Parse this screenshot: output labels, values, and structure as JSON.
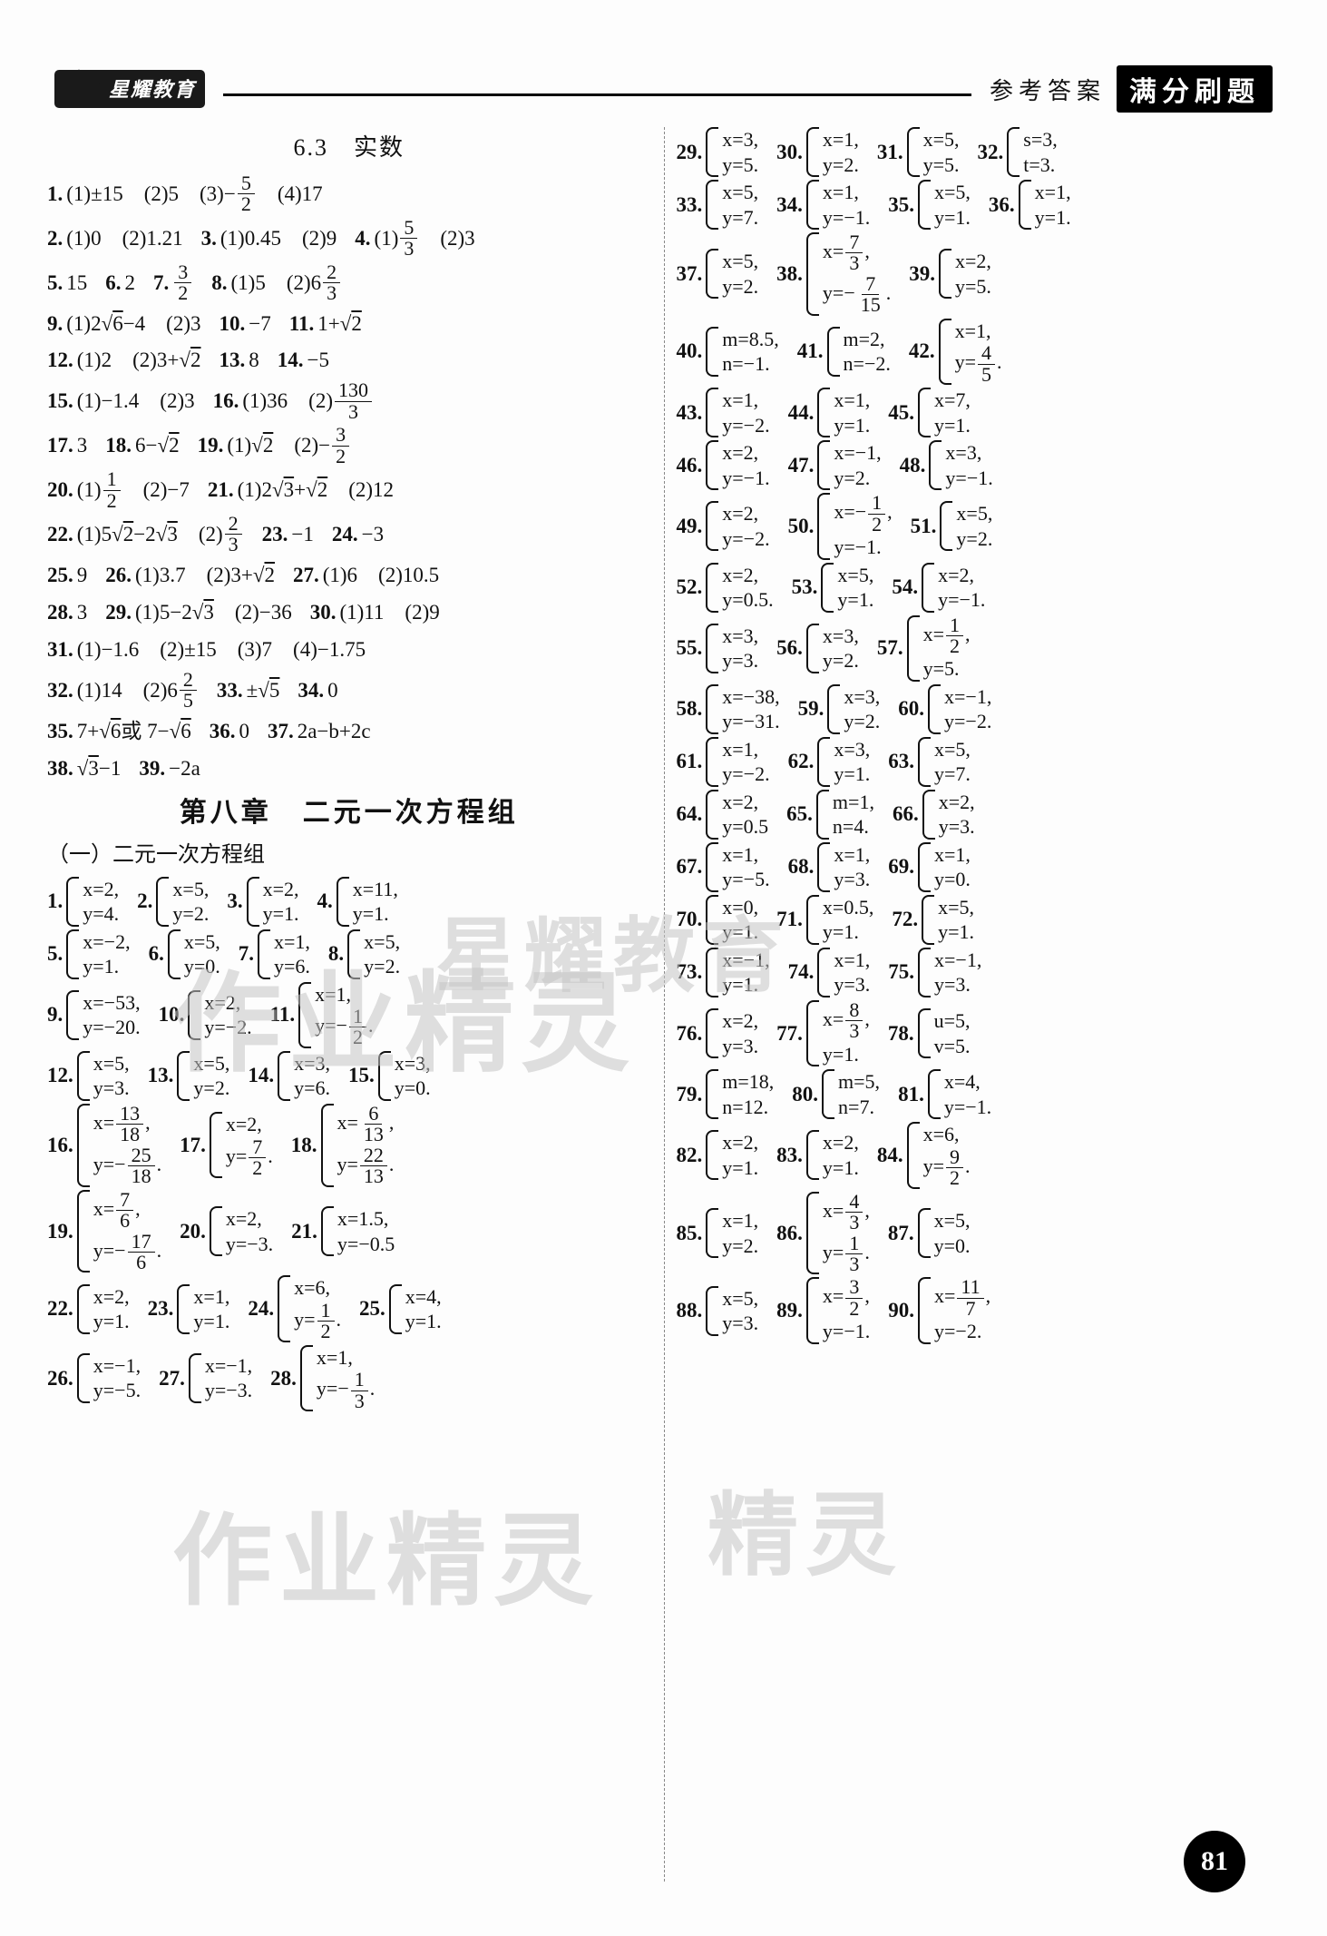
{
  "brand": "星耀教育",
  "ref": "参考答案",
  "badge": "满分刷题",
  "pagenum": "81",
  "sec63_title": "6.3　实数",
  "chap8_title": "第八章　二元一次方程组",
  "chap8_sub": "（一）二元一次方程组",
  "watermarks": [
    "星耀教育",
    "作业精灵",
    "作业精灵",
    "精灵"
  ],
  "colors": {
    "text": "#111",
    "bg": "#fdfdfd",
    "header": "#000",
    "wm": "#c5c5c5"
  },
  "font_main_pt": 17,
  "sec63": [
    {
      "n": "1.",
      "p": "(1)±15　(2)5　(3)−5/2　(4)17"
    },
    {
      "n": "2.",
      "p": "(1)0　(2)1.21"
    },
    {
      "n": "3.",
      "p": "(1)0.45　(2)9"
    },
    {
      "n": "4.",
      "p": "(1)5/3　(2)3"
    },
    {
      "n": "5.",
      "p": "15"
    },
    {
      "n": "6.",
      "p": "2"
    },
    {
      "n": "7.",
      "p": "3/2"
    },
    {
      "n": "8.",
      "p": "(1)5　(2)6 2/3"
    },
    {
      "n": "9.",
      "p": "(1)2√6−4　(2)3"
    },
    {
      "n": "10.",
      "p": "−7"
    },
    {
      "n": "11.",
      "p": "1+√2"
    },
    {
      "n": "12.",
      "p": "(1)2　(2)3+√2"
    },
    {
      "n": "13.",
      "p": "8"
    },
    {
      "n": "14.",
      "p": "−5"
    },
    {
      "n": "15.",
      "p": "(1)−1.4　(2)3"
    },
    {
      "n": "16.",
      "p": "(1)36　(2)130/3"
    },
    {
      "n": "17.",
      "p": "3"
    },
    {
      "n": "18.",
      "p": "6−√2"
    },
    {
      "n": "19.",
      "p": "(1)√2　(2)−3/2"
    },
    {
      "n": "20.",
      "p": "(1)1/2　(2)−7"
    },
    {
      "n": "21.",
      "p": "(1)2√3+√2　(2)12"
    },
    {
      "n": "22.",
      "p": "(1)5√2−2√3　(2)2/3"
    },
    {
      "n": "23.",
      "p": "−1"
    },
    {
      "n": "24.",
      "p": "−3"
    },
    {
      "n": "25.",
      "p": "9"
    },
    {
      "n": "26.",
      "p": "(1)3.7　(2)3+√2"
    },
    {
      "n": "27.",
      "p": "(1)6　(2)10.5"
    },
    {
      "n": "28.",
      "p": "3"
    },
    {
      "n": "29.",
      "p": "(1)5−2√3　(2)−36"
    },
    {
      "n": "30.",
      "p": "(1)11　(2)9"
    },
    {
      "n": "31.",
      "p": "(1)−1.6　(2)±15　(3)7　(4)−1.75"
    },
    {
      "n": "32.",
      "p": "(1)14　(2)6 2/5"
    },
    {
      "n": "33.",
      "p": "±√5"
    },
    {
      "n": "34.",
      "p": "0"
    },
    {
      "n": "35.",
      "p": "7+√6 或 7−√6"
    },
    {
      "n": "36.",
      "p": "0"
    },
    {
      "n": "37.",
      "p": "2a−b+2c"
    },
    {
      "n": "38.",
      "p": "√3−1"
    },
    {
      "n": "39.",
      "p": "−2a"
    }
  ],
  "chap8": [
    {
      "n": "1.",
      "x": "x=2,",
      "y": "y=4."
    },
    {
      "n": "2.",
      "x": "x=5,",
      "y": "y=2."
    },
    {
      "n": "3.",
      "x": "x=2,",
      "y": "y=1."
    },
    {
      "n": "4.",
      "x": "x=11,",
      "y": "y=1."
    },
    {
      "n": "5.",
      "x": "x=−2,",
      "y": "y=1."
    },
    {
      "n": "6.",
      "x": "x=5,",
      "y": "y=0."
    },
    {
      "n": "7.",
      "x": "x=1,",
      "y": "y=6."
    },
    {
      "n": "8.",
      "x": "x=5,",
      "y": "y=2."
    },
    {
      "n": "9.",
      "x": "x=−53,",
      "y": "y=−20."
    },
    {
      "n": "10.",
      "x": "x=2,",
      "y": "y=−2."
    },
    {
      "n": "11.",
      "x": "x=1,",
      "y": "y=−1/2."
    },
    {
      "n": "12.",
      "x": "x=5,",
      "y": "y=3."
    },
    {
      "n": "13.",
      "x": "x=5,",
      "y": "y=2."
    },
    {
      "n": "14.",
      "x": "x=3,",
      "y": "y=6."
    },
    {
      "n": "15.",
      "x": "x=3,",
      "y": "y=0."
    },
    {
      "n": "16.",
      "x": "x=13/18,",
      "y": "y=−25/18."
    },
    {
      "n": "17.",
      "x": "x=2,",
      "y": "y=7/2."
    },
    {
      "n": "18.",
      "x": "x=6/13,",
      "y": "y=22/13."
    },
    {
      "n": "19.",
      "x": "x=7/6,",
      "y": "y=−17/6."
    },
    {
      "n": "20.",
      "x": "x=2,",
      "y": "y=−3."
    },
    {
      "n": "21.",
      "x": "x=1.5,",
      "y": "y=−0.5"
    },
    {
      "n": "22.",
      "x": "x=2,",
      "y": "y=1."
    },
    {
      "n": "23.",
      "x": "x=1,",
      "y": "y=1."
    },
    {
      "n": "24.",
      "x": "x=6,",
      "y": "y=1/2."
    },
    {
      "n": "25.",
      "x": "x=4,",
      "y": "y=1."
    },
    {
      "n": "26.",
      "x": "x=−1,",
      "y": "y=−5."
    },
    {
      "n": "27.",
      "x": "x=−1,",
      "y": "y=−3."
    },
    {
      "n": "28.",
      "x": "x=1,",
      "y": "y=−1/3."
    },
    {
      "n": "29.",
      "x": "x=3,",
      "y": "y=5."
    },
    {
      "n": "30.",
      "x": "x=1,",
      "y": "y=2."
    },
    {
      "n": "31.",
      "x": "x=5,",
      "y": "y=5."
    },
    {
      "n": "32.",
      "x": "s=3,",
      "y": "t=3."
    },
    {
      "n": "33.",
      "x": "x=5,",
      "y": "y=7."
    },
    {
      "n": "34.",
      "x": "x=1,",
      "y": "y=−1."
    },
    {
      "n": "35.",
      "x": "x=5,",
      "y": "y=1."
    },
    {
      "n": "36.",
      "x": "x=1,",
      "y": "y=1."
    },
    {
      "n": "37.",
      "x": "x=5,",
      "y": "y=2."
    },
    {
      "n": "38.",
      "x": "x=7/3,",
      "y": "y=−7/15."
    },
    {
      "n": "39.",
      "x": "x=2,",
      "y": "y=5."
    },
    {
      "n": "40.",
      "x": "m=8.5,",
      "y": "n=−1."
    },
    {
      "n": "41.",
      "x": "m=2,",
      "y": "n=−2."
    },
    {
      "n": "42.",
      "x": "x=1,",
      "y": "y=4/5."
    },
    {
      "n": "43.",
      "x": "x=1,",
      "y": "y=−2."
    },
    {
      "n": "44.",
      "x": "x=1,",
      "y": "y=1."
    },
    {
      "n": "45.",
      "x": "x=7,",
      "y": "y=1."
    },
    {
      "n": "46.",
      "x": "x=2,",
      "y": "y=−1."
    },
    {
      "n": "47.",
      "x": "x=−1,",
      "y": "y=2."
    },
    {
      "n": "48.",
      "x": "x=3,",
      "y": "y=−1."
    },
    {
      "n": "49.",
      "x": "x=2,",
      "y": "y=−2."
    },
    {
      "n": "50.",
      "x": "x=−1/2,",
      "y": "y=−1."
    },
    {
      "n": "51.",
      "x": "x=5,",
      "y": "y=2."
    },
    {
      "n": "52.",
      "x": "x=2,",
      "y": "y=0.5."
    },
    {
      "n": "53.",
      "x": "x=5,",
      "y": "y=1."
    },
    {
      "n": "54.",
      "x": "x=2,",
      "y": "y=−1."
    },
    {
      "n": "55.",
      "x": "x=3,",
      "y": "y=3."
    },
    {
      "n": "56.",
      "x": "x=3,",
      "y": "y=2."
    },
    {
      "n": "57.",
      "x": "x=1/2,",
      "y": "y=5."
    },
    {
      "n": "58.",
      "x": "x=−38,",
      "y": "y=−31."
    },
    {
      "n": "59.",
      "x": "x=3,",
      "y": "y=2."
    },
    {
      "n": "60.",
      "x": "x=−1,",
      "y": "y=−2."
    },
    {
      "n": "61.",
      "x": "x=1,",
      "y": "y=−2."
    },
    {
      "n": "62.",
      "x": "x=3,",
      "y": "y=1."
    },
    {
      "n": "63.",
      "x": "x=5,",
      "y": "y=7."
    },
    {
      "n": "64.",
      "x": "x=2,",
      "y": "y=0.5"
    },
    {
      "n": "65.",
      "x": "m=1,",
      "y": "n=4."
    },
    {
      "n": "66.",
      "x": "x=2,",
      "y": "y=3."
    },
    {
      "n": "67.",
      "x": "x=1,",
      "y": "y=−5."
    },
    {
      "n": "68.",
      "x": "x=1,",
      "y": "y=3."
    },
    {
      "n": "69.",
      "x": "x=1,",
      "y": "y=0."
    },
    {
      "n": "70.",
      "x": "x=0,",
      "y": "y=1."
    },
    {
      "n": "71.",
      "x": "x=0.5,",
      "y": "y=1."
    },
    {
      "n": "72.",
      "x": "x=5,",
      "y": "y=1."
    },
    {
      "n": "73.",
      "x": "x=−1,",
      "y": "y=1."
    },
    {
      "n": "74.",
      "x": "x=1,",
      "y": "y=3."
    },
    {
      "n": "75.",
      "x": "x=−1,",
      "y": "y=3."
    },
    {
      "n": "76.",
      "x": "x=2,",
      "y": "y=3."
    },
    {
      "n": "77.",
      "x": "x=8/3,",
      "y": "y=1."
    },
    {
      "n": "78.",
      "x": "u=5,",
      "y": "v=5."
    },
    {
      "n": "79.",
      "x": "m=18,",
      "y": "n=12."
    },
    {
      "n": "80.",
      "x": "m=5,",
      "y": "n=7."
    },
    {
      "n": "81.",
      "x": "x=4,",
      "y": "y=−1."
    },
    {
      "n": "82.",
      "x": "x=2,",
      "y": "y=1."
    },
    {
      "n": "83.",
      "x": "x=2,",
      "y": "y=1."
    },
    {
      "n": "84.",
      "x": "x=6,",
      "y": "y=9/2."
    },
    {
      "n": "85.",
      "x": "x=1,",
      "y": "y=2."
    },
    {
      "n": "86.",
      "x": "x=4/3,",
      "y": "y=1/3."
    },
    {
      "n": "87.",
      "x": "x=5,",
      "y": "y=0."
    },
    {
      "n": "88.",
      "x": "x=5,",
      "y": "y=3."
    },
    {
      "n": "89.",
      "x": "x=3/2,",
      "y": "y=−1."
    },
    {
      "n": "90.",
      "x": "x=11/7,",
      "y": "y=−2."
    }
  ]
}
